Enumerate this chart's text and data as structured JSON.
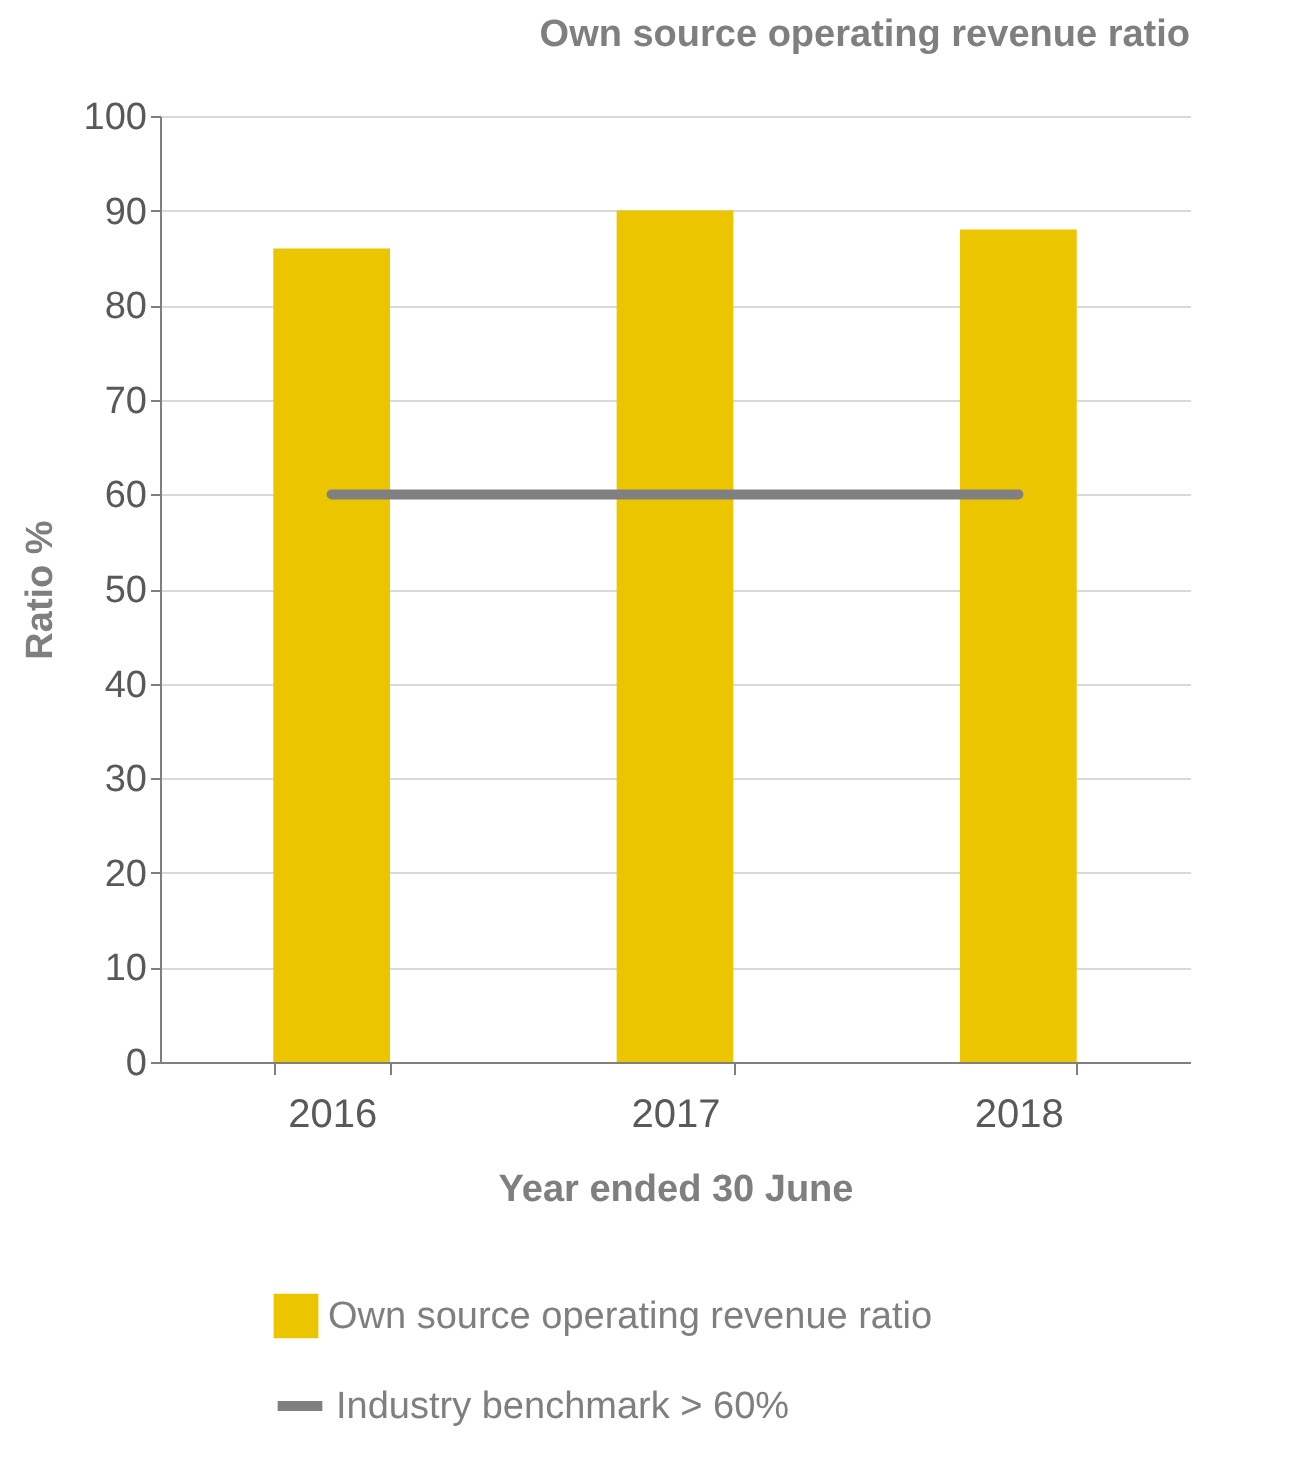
{
  "chart_data": {
    "type": "bar",
    "title": "Own source operating revenue ratio",
    "xlabel": "Year ended 30 June",
    "ylabel": "Ratio %",
    "categories": [
      "2016",
      "2017",
      "2018"
    ],
    "series": [
      {
        "name": "Own source operating revenue ratio",
        "color": "#eac500",
        "values": [
          86,
          90,
          88
        ]
      },
      {
        "name": "Industry benchmark > 60%",
        "type": "line",
        "color": "#808080",
        "values": [
          60,
          60,
          60
        ]
      }
    ],
    "ylim": [
      0,
      100
    ],
    "yticks": [
      0,
      10,
      20,
      30,
      40,
      50,
      60,
      70,
      80,
      90,
      100
    ],
    "grid": "y",
    "legend": "bottom"
  }
}
